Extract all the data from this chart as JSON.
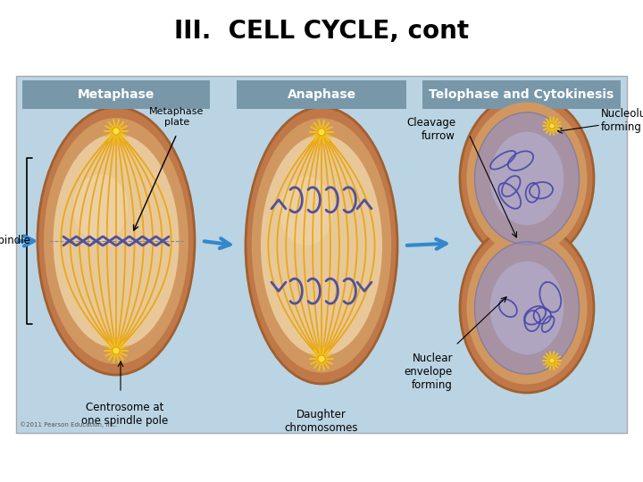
{
  "title": "III.  CELL CYCLE, cont",
  "title_fontsize": 20,
  "title_fontweight": "bold",
  "background_color": "#ffffff",
  "diagram_bg": "#bad4e3",
  "header_bg": "#7898aa",
  "header_text_color": "#ffffff",
  "cell_outer": "#c8905a",
  "cell_mid": "#d9a870",
  "cell_inner": "#e8c898",
  "spindle_color": "#e8a818",
  "chr_color": "#5050a0",
  "arrow_color": "#3388cc",
  "label_color": "#000000",
  "line_color": "#000000",
  "phase_headers": [
    "Metaphase",
    "Anaphase",
    "Telophase and Cytokinesis"
  ],
  "copyright": "©2011 Pearson Education, Inc."
}
